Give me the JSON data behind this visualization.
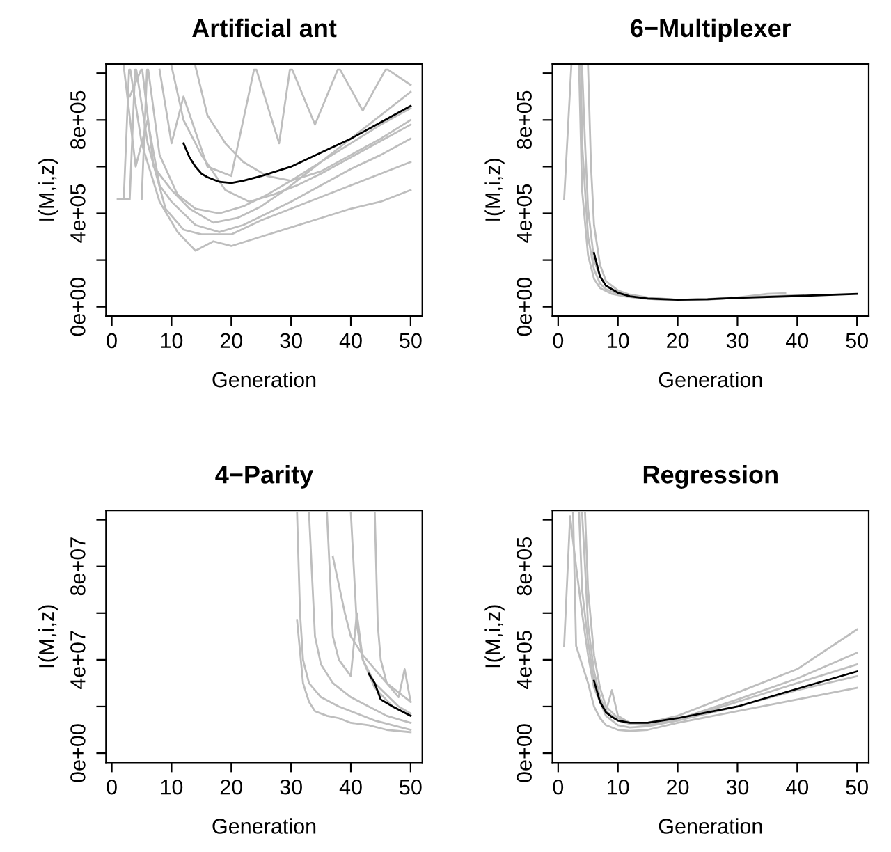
{
  "chart_data": [
    {
      "type": "line",
      "title": "Artificial ant",
      "xlabel": "Generation",
      "ylabel": "I(M,i,z)",
      "xlim": [
        -0.96,
        51.96
      ],
      "ylim": [
        -40000,
        1040000
      ],
      "xticks": [
        0,
        10,
        20,
        30,
        40,
        50
      ],
      "yticks": [
        {
          "value": 0,
          "label": "0e+00"
        },
        {
          "value": 200000,
          "label": null
        },
        {
          "value": 400000,
          "label": "4e+05"
        },
        {
          "value": 600000,
          "label": null
        },
        {
          "value": 800000,
          "label": "8e+05"
        },
        {
          "value": 1000000,
          "label": null
        }
      ],
      "series": [
        {
          "color": "#bebebe",
          "x": [
            1,
            2,
            2.9,
            3.1,
            5,
            8,
            11,
            14,
            17,
            20,
            25,
            30,
            35,
            40,
            45,
            50
          ],
          "values": [
            460000,
            460000,
            1015000,
            1015000,
            700000,
            450000,
            320000,
            240000,
            280000,
            260000,
            300000,
            340000,
            380000,
            420000,
            450000,
            500000
          ]
        },
        {
          "color": "#bebebe",
          "x": [
            1,
            3,
            3.9,
            4.1,
            6,
            9,
            12,
            15,
            20,
            25,
            30,
            35,
            40,
            45,
            50
          ],
          "values": [
            460000,
            460000,
            1015000,
            1015000,
            700000,
            420000,
            330000,
            310000,
            310000,
            370000,
            420000,
            470000,
            520000,
            570000,
            620000
          ]
        },
        {
          "color": "#bebebe",
          "x": [
            2,
            4,
            6,
            8,
            10,
            14,
            18,
            22,
            26,
            30,
            35,
            40,
            45,
            50
          ],
          "values": [
            1030000,
            600000,
            800000,
            520000,
            450000,
            350000,
            320000,
            350000,
            400000,
            450000,
            520000,
            590000,
            650000,
            720000
          ]
        },
        {
          "color": "#bebebe",
          "x": [
            5,
            5.9,
            6.1,
            8,
            11,
            14,
            18,
            22,
            26,
            30,
            35,
            40,
            45,
            50
          ],
          "values": [
            460000,
            1015000,
            1015000,
            650000,
            480000,
            420000,
            400000,
            430000,
            480000,
            540000,
            620000,
            700000,
            780000,
            850000
          ]
        },
        {
          "color": "#bebebe",
          "x": [
            8,
            10,
            12,
            16,
            20,
            23.8,
            24.2,
            28,
            29.8,
            30.2,
            34,
            37.8,
            38.2,
            42,
            45.8,
            46.2,
            50
          ],
          "values": [
            1015000,
            700000,
            900000,
            600000,
            560000,
            1015000,
            1015000,
            700000,
            1015000,
            1015000,
            780000,
            1015000,
            1015000,
            840000,
            1015000,
            1015000,
            950000
          ]
        },
        {
          "color": "#bebebe",
          "x": [
            3,
            4.9,
            5.1,
            7,
            10,
            13,
            17,
            21,
            25,
            29,
            33,
            37,
            41,
            45,
            50
          ],
          "values": [
            900000,
            1015000,
            1015000,
            600000,
            500000,
            420000,
            360000,
            380000,
            430000,
            500000,
            580000,
            660000,
            740000,
            820000,
            920000
          ]
        },
        {
          "color": "#bebebe",
          "x": [
            10,
            12,
            15,
            19,
            23,
            27,
            31,
            35,
            40,
            45,
            50
          ],
          "values": [
            1030000,
            800000,
            650000,
            500000,
            450000,
            480000,
            520000,
            570000,
            640000,
            710000,
            780000
          ]
        },
        {
          "color": "#bebebe",
          "x": [
            14,
            16,
            19,
            22,
            26,
            30,
            35,
            40,
            45,
            50
          ],
          "values": [
            1030000,
            820000,
            700000,
            620000,
            560000,
            540000,
            580000,
            650000,
            720000,
            800000
          ]
        },
        {
          "color": "#000000",
          "x": [
            12,
            13,
            14,
            15,
            16,
            18,
            20,
            22,
            25,
            30,
            35,
            40,
            45,
            50
          ],
          "values": [
            700000,
            640000,
            600000,
            570000,
            555000,
            535000,
            530000,
            540000,
            560000,
            600000,
            660000,
            720000,
            790000,
            860000
          ]
        }
      ]
    },
    {
      "type": "line",
      "title": "6−Multiplexer",
      "xlabel": "Generation",
      "ylabel": "I(M,i,z)",
      "xlim": [
        -0.96,
        51.96
      ],
      "ylim": [
        -40000,
        1040000
      ],
      "xticks": [
        0,
        10,
        20,
        30,
        40,
        50
      ],
      "yticks": [
        {
          "value": 0,
          "label": "0e+00"
        },
        {
          "value": 200000,
          "label": null
        },
        {
          "value": 400000,
          "label": "4e+05"
        },
        {
          "value": 600000,
          "label": null
        },
        {
          "value": 800000,
          "label": "8e+05"
        },
        {
          "value": 1000000,
          "label": null
        }
      ],
      "series": [
        {
          "color": "#bebebe",
          "x": [
            1,
            2.2
          ],
          "values": [
            460000,
            1030000
          ]
        },
        {
          "color": "#bebebe",
          "x": [
            3.8,
            4,
            5,
            6,
            7,
            8,
            10,
            13,
            16,
            20,
            25,
            30,
            35,
            38
          ],
          "values": [
            1030000,
            700000,
            300000,
            160000,
            100000,
            75000,
            55000,
            40000,
            32000,
            28000,
            30000,
            40000,
            55000,
            58000
          ]
        },
        {
          "color": "#bebebe",
          "x": [
            4,
            4.5,
            5,
            6,
            7,
            8,
            10,
            13,
            16,
            20,
            25,
            30,
            35,
            41
          ],
          "values": [
            1030000,
            700000,
            420000,
            200000,
            130000,
            90000,
            62000,
            45000,
            36000,
            30000,
            32000,
            38000,
            45000,
            50000
          ]
        },
        {
          "color": "#bebebe",
          "x": [
            5,
            5.5,
            6,
            7,
            8,
            10,
            12,
            15,
            20,
            25,
            29
          ],
          "values": [
            1030000,
            600000,
            350000,
            180000,
            110000,
            70000,
            52000,
            40000,
            30000,
            33000,
            40000
          ]
        },
        {
          "color": "#bebebe",
          "x": [
            3.5,
            4,
            5,
            6,
            7,
            9,
            11,
            14,
            18,
            22
          ],
          "values": [
            1030000,
            500000,
            220000,
            120000,
            80000,
            55000,
            45000,
            36000,
            30000,
            28000
          ]
        },
        {
          "color": "#000000",
          "x": [
            6,
            7,
            8,
            9,
            10,
            12,
            15,
            20,
            25,
            30,
            40,
            50
          ],
          "values": [
            230000,
            130000,
            90000,
            75000,
            60000,
            45000,
            35000,
            30000,
            32000,
            38000,
            46000,
            55000
          ]
        }
      ]
    },
    {
      "type": "line",
      "title": "4−Parity",
      "xlabel": "Generation",
      "ylabel": "I(M,i,z)",
      "xlim": [
        -0.96,
        51.96
      ],
      "ylim": [
        -4000000,
        104000000
      ],
      "xticks": [
        0,
        10,
        20,
        30,
        40,
        50
      ],
      "yticks": [
        {
          "value": 0,
          "label": "0e+00"
        },
        {
          "value": 20000000,
          "label": null
        },
        {
          "value": 40000000,
          "label": "4e+07"
        },
        {
          "value": 60000000,
          "label": null
        },
        {
          "value": 80000000,
          "label": "8e+07"
        },
        {
          "value": 100000000,
          "label": null
        }
      ],
      "series": [
        {
          "color": "#bebebe",
          "x": [
            31,
            32,
            33,
            34,
            36,
            38,
            40,
            43,
            46,
            50
          ],
          "values": [
            57000000,
            30000000,
            22000000,
            18000000,
            16000000,
            15000000,
            13000000,
            12000000,
            10000000,
            9000000
          ]
        },
        {
          "color": "#bebebe",
          "x": [
            31,
            31.5,
            32,
            33,
            35,
            38,
            41,
            44,
            47,
            50
          ],
          "values": [
            103000000,
            60000000,
            40000000,
            30000000,
            24000000,
            20000000,
            17000000,
            14000000,
            12000000,
            10000000
          ]
        },
        {
          "color": "#bebebe",
          "x": [
            33,
            34,
            35,
            37,
            40,
            43,
            46,
            50
          ],
          "values": [
            103000000,
            50000000,
            38000000,
            30000000,
            24000000,
            20000000,
            16000000,
            13000000
          ]
        },
        {
          "color": "#bebebe",
          "x": [
            36,
            37,
            38,
            40,
            41,
            42,
            44,
            47,
            50
          ],
          "values": [
            103000000,
            50000000,
            40000000,
            33000000,
            60000000,
            40000000,
            28000000,
            20000000,
            16000000
          ]
        },
        {
          "color": "#bebebe",
          "x": [
            40,
            41,
            42,
            44,
            46,
            48,
            50
          ],
          "values": [
            103000000,
            55000000,
            40000000,
            30000000,
            25000000,
            20000000,
            17000000
          ]
        },
        {
          "color": "#bebebe",
          "x": [
            44,
            44.5,
            45,
            46,
            48,
            49,
            50
          ],
          "values": [
            103000000,
            55000000,
            40000000,
            30000000,
            24000000,
            36000000,
            22000000
          ]
        },
        {
          "color": "#bebebe",
          "x": [
            37,
            38,
            39,
            40,
            42,
            44,
            46,
            48,
            50
          ],
          "values": [
            84000000,
            72000000,
            60000000,
            50000000,
            42000000,
            36000000,
            30000000,
            26000000,
            22000000
          ]
        },
        {
          "color": "#000000",
          "x": [
            43,
            44,
            45,
            47,
            50
          ],
          "values": [
            34000000,
            30000000,
            23000000,
            20000000,
            16000000
          ]
        }
      ]
    },
    {
      "type": "line",
      "title": "Regression",
      "xlabel": "Generation",
      "ylabel": "I(M,i,z)",
      "xlim": [
        -0.96,
        51.96
      ],
      "ylim": [
        -40000,
        1040000
      ],
      "xticks": [
        0,
        10,
        20,
        30,
        40,
        50
      ],
      "yticks": [
        {
          "value": 0,
          "label": "0e+00"
        },
        {
          "value": 200000,
          "label": null
        },
        {
          "value": 400000,
          "label": "4e+05"
        },
        {
          "value": 600000,
          "label": null
        },
        {
          "value": 800000,
          "label": "8e+05"
        },
        {
          "value": 1000000,
          "label": null
        }
      ],
      "series": [
        {
          "color": "#bebebe",
          "x": [
            1,
            2,
            3,
            4,
            5,
            6,
            8,
            10,
            12,
            15,
            20,
            30,
            40,
            50
          ],
          "values": [
            460000,
            1015000,
            800000,
            600000,
            420000,
            280000,
            160000,
            120000,
            110000,
            115000,
            140000,
            220000,
            300000,
            380000
          ]
        },
        {
          "color": "#bebebe",
          "x": [
            2.5,
            3,
            4,
            5,
            6,
            7,
            8,
            10,
            12,
            15,
            20,
            30,
            40,
            50
          ],
          "values": [
            1030000,
            460000,
            380000,
            300000,
            200000,
            150000,
            120000,
            100000,
            95000,
            100000,
            130000,
            180000,
            230000,
            280000
          ]
        },
        {
          "color": "#bebebe",
          "x": [
            3.5,
            4,
            5,
            6,
            7,
            8,
            9,
            10,
            12,
            15,
            20,
            30,
            40,
            50
          ],
          "values": [
            1030000,
            700000,
            480000,
            300000,
            220000,
            180000,
            270000,
            160000,
            130000,
            130000,
            160000,
            260000,
            360000,
            530000
          ]
        },
        {
          "color": "#bebebe",
          "x": [
            4,
            4.5,
            5,
            6,
            7,
            8,
            10,
            12,
            15,
            20,
            30,
            40,
            50
          ],
          "values": [
            1030000,
            800000,
            550000,
            350000,
            240000,
            180000,
            140000,
            125000,
            120000,
            140000,
            200000,
            270000,
            330000
          ]
        },
        {
          "color": "#bebebe",
          "x": [
            4.5,
            5,
            6,
            7,
            8,
            10,
            12,
            15,
            20,
            30,
            40,
            50
          ],
          "values": [
            1030000,
            700000,
            420000,
            280000,
            200000,
            150000,
            130000,
            125000,
            145000,
            230000,
            320000,
            430000
          ]
        },
        {
          "color": "#000000",
          "x": [
            6,
            7,
            8,
            9,
            10,
            12,
            15,
            20,
            25,
            30,
            40,
            50
          ],
          "values": [
            310000,
            220000,
            175000,
            155000,
            140000,
            130000,
            130000,
            150000,
            175000,
            200000,
            276000,
            350000
          ]
        }
      ]
    }
  ]
}
